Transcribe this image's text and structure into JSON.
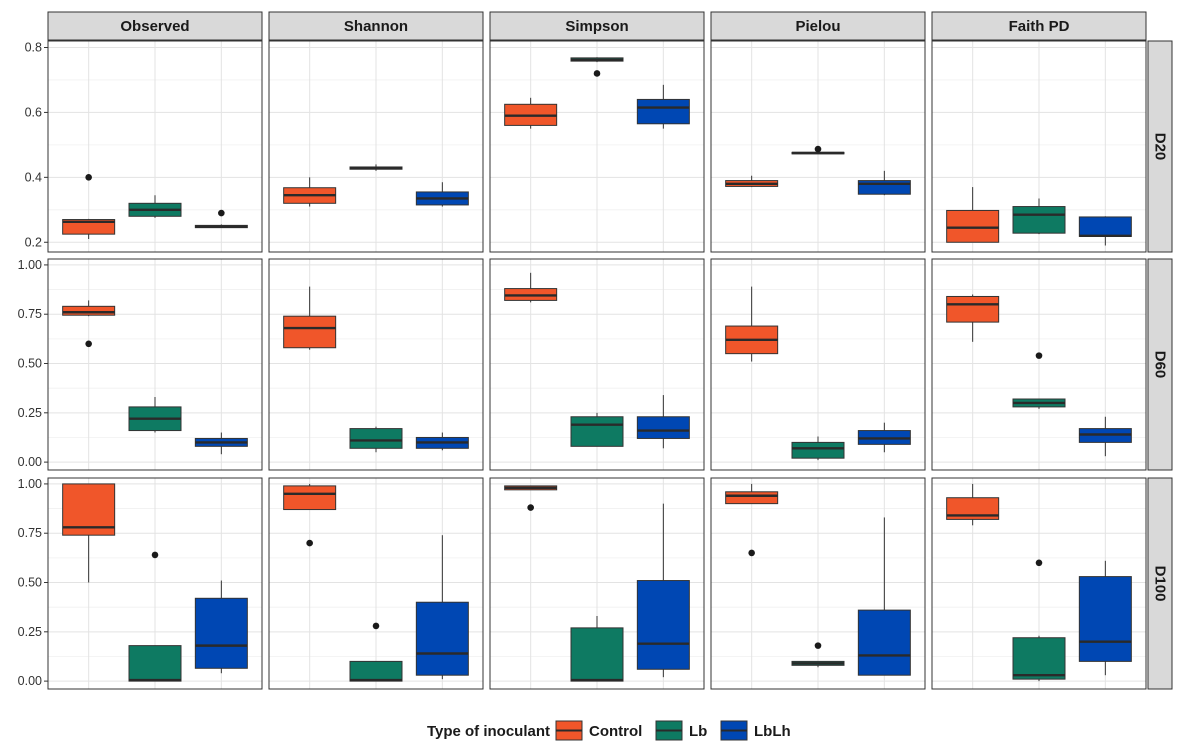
{
  "chart_data": {
    "type": "box",
    "legend": {
      "title": "Type of inoculant",
      "position": "bottom",
      "entries": [
        {
          "name": "Control",
          "color": "#f0562a"
        },
        {
          "name": "Lb",
          "color": "#0e7a62"
        },
        {
          "name": "LbLh",
          "color": "#0047b3"
        }
      ]
    },
    "columns": [
      "Observed",
      "Shannon",
      "Simpson",
      "Pielou",
      "Faith PD"
    ],
    "groups": [
      "Control",
      "Lb",
      "LbLh"
    ],
    "rows": [
      {
        "label": "D20",
        "ylim": [
          0.17,
          0.82
        ],
        "ticks": [
          0.2,
          0.4,
          0.6,
          0.8
        ],
        "tick_labels": [
          "0.2",
          "0.4",
          "0.6",
          "0.8"
        ],
        "panels": [
          {
            "column": "Observed",
            "boxes": [
              {
                "group": "Control",
                "min": 0.21,
                "q1": 0.225,
                "median": 0.263,
                "q3": 0.27,
                "max": 0.272,
                "outliers": [
                  0.4
                ]
              },
              {
                "group": "Lb",
                "min": 0.275,
                "q1": 0.28,
                "median": 0.3,
                "q3": 0.32,
                "max": 0.345,
                "outliers": []
              },
              {
                "group": "LbLh",
                "min": 0.245,
                "q1": 0.245,
                "median": 0.248,
                "q3": 0.252,
                "max": 0.255,
                "outliers": [
                  0.29
                ]
              }
            ]
          },
          {
            "column": "Shannon",
            "boxes": [
              {
                "group": "Control",
                "min": 0.31,
                "q1": 0.32,
                "median": 0.345,
                "q3": 0.368,
                "max": 0.4,
                "outliers": []
              },
              {
                "group": "Lb",
                "min": 0.42,
                "q1": 0.425,
                "median": 0.428,
                "q3": 0.432,
                "max": 0.44,
                "outliers": []
              },
              {
                "group": "LbLh",
                "min": 0.31,
                "q1": 0.315,
                "median": 0.335,
                "q3": 0.355,
                "max": 0.385,
                "outliers": []
              }
            ]
          },
          {
            "column": "Simpson",
            "boxes": [
              {
                "group": "Control",
                "min": 0.55,
                "q1": 0.56,
                "median": 0.59,
                "q3": 0.625,
                "max": 0.645,
                "outliers": []
              },
              {
                "group": "Lb",
                "min": 0.755,
                "q1": 0.758,
                "median": 0.762,
                "q3": 0.768,
                "max": 0.77,
                "outliers": [
                  0.72
                ]
              },
              {
                "group": "LbLh",
                "min": 0.55,
                "q1": 0.565,
                "median": 0.615,
                "q3": 0.64,
                "max": 0.685,
                "outliers": []
              }
            ]
          },
          {
            "column": "Pielou",
            "boxes": [
              {
                "group": "Control",
                "min": 0.37,
                "q1": 0.372,
                "median": 0.38,
                "q3": 0.39,
                "max": 0.405,
                "outliers": []
              },
              {
                "group": "Lb",
                "min": 0.472,
                "q1": 0.473,
                "median": 0.475,
                "q3": 0.477,
                "max": 0.478,
                "outliers": [
                  0.487
                ]
              },
              {
                "group": "LbLh",
                "min": 0.345,
                "q1": 0.348,
                "median": 0.38,
                "q3": 0.39,
                "max": 0.42,
                "outliers": []
              }
            ]
          },
          {
            "column": "Faith PD",
            "boxes": [
              {
                "group": "Control",
                "min": 0.2,
                "q1": 0.2,
                "median": 0.245,
                "q3": 0.298,
                "max": 0.37,
                "outliers": []
              },
              {
                "group": "Lb",
                "min": 0.225,
                "q1": 0.228,
                "median": 0.285,
                "q3": 0.31,
                "max": 0.335,
                "outliers": []
              },
              {
                "group": "LbLh",
                "min": 0.19,
                "q1": 0.218,
                "median": 0.22,
                "q3": 0.278,
                "max": 0.28,
                "outliers": []
              }
            ]
          }
        ]
      },
      {
        "label": "D60",
        "ylim": [
          -0.04,
          1.03
        ],
        "ticks": [
          0.0,
          0.25,
          0.5,
          0.75,
          1.0
        ],
        "tick_labels": [
          "0.00",
          "0.25",
          "0.50",
          "0.75",
          "1.00"
        ],
        "panels": [
          {
            "column": "Observed",
            "boxes": [
              {
                "group": "Control",
                "min": 0.74,
                "q1": 0.745,
                "median": 0.76,
                "q3": 0.79,
                "max": 0.82,
                "outliers": [
                  0.6
                ]
              },
              {
                "group": "Lb",
                "min": 0.15,
                "q1": 0.16,
                "median": 0.22,
                "q3": 0.28,
                "max": 0.33,
                "outliers": []
              },
              {
                "group": "LbLh",
                "min": 0.04,
                "q1": 0.08,
                "median": 0.1,
                "q3": 0.12,
                "max": 0.15,
                "outliers": []
              }
            ]
          },
          {
            "column": "Shannon",
            "boxes": [
              {
                "group": "Control",
                "min": 0.57,
                "q1": 0.58,
                "median": 0.68,
                "q3": 0.74,
                "max": 0.89,
                "outliers": []
              },
              {
                "group": "Lb",
                "min": 0.05,
                "q1": 0.07,
                "median": 0.11,
                "q3": 0.17,
                "max": 0.18,
                "outliers": []
              },
              {
                "group": "LbLh",
                "min": 0.06,
                "q1": 0.07,
                "median": 0.1,
                "q3": 0.125,
                "max": 0.15,
                "outliers": []
              }
            ]
          },
          {
            "column": "Simpson",
            "boxes": [
              {
                "group": "Control",
                "min": 0.81,
                "q1": 0.82,
                "median": 0.845,
                "q3": 0.88,
                "max": 0.96,
                "outliers": []
              },
              {
                "group": "Lb",
                "min": 0.08,
                "q1": 0.08,
                "median": 0.19,
                "q3": 0.23,
                "max": 0.25,
                "outliers": []
              },
              {
                "group": "LbLh",
                "min": 0.07,
                "q1": 0.12,
                "median": 0.16,
                "q3": 0.23,
                "max": 0.34,
                "outliers": []
              }
            ]
          },
          {
            "column": "Pielou",
            "boxes": [
              {
                "group": "Control",
                "min": 0.51,
                "q1": 0.55,
                "median": 0.62,
                "q3": 0.69,
                "max": 0.89,
                "outliers": []
              },
              {
                "group": "Lb",
                "min": 0.01,
                "q1": 0.02,
                "median": 0.07,
                "q3": 0.1,
                "max": 0.13,
                "outliers": []
              },
              {
                "group": "LbLh",
                "min": 0.05,
                "q1": 0.09,
                "median": 0.12,
                "q3": 0.16,
                "max": 0.2,
                "outliers": []
              }
            ]
          },
          {
            "column": "Faith PD",
            "boxes": [
              {
                "group": "Control",
                "min": 0.61,
                "q1": 0.71,
                "median": 0.8,
                "q3": 0.84,
                "max": 0.85,
                "outliers": []
              },
              {
                "group": "Lb",
                "min": 0.27,
                "q1": 0.28,
                "median": 0.3,
                "q3": 0.32,
                "max": 0.32,
                "outliers": [
                  0.54
                ]
              },
              {
                "group": "LbLh",
                "min": 0.03,
                "q1": 0.1,
                "median": 0.14,
                "q3": 0.17,
                "max": 0.23,
                "outliers": []
              }
            ]
          }
        ]
      },
      {
        "label": "D100",
        "ylim": [
          -0.04,
          1.03
        ],
        "ticks": [
          0.0,
          0.25,
          0.5,
          0.75,
          1.0
        ],
        "tick_labels": [
          "0.00",
          "0.25",
          "0.50",
          "0.75",
          "1.00"
        ],
        "panels": [
          {
            "column": "Observed",
            "boxes": [
              {
                "group": "Control",
                "min": 0.5,
                "q1": 0.74,
                "median": 0.78,
                "q3": 1.0,
                "max": 1.0,
                "outliers": []
              },
              {
                "group": "Lb",
                "min": 0.0,
                "q1": 0.0,
                "median": 0.005,
                "q3": 0.18,
                "max": 0.18,
                "outliers": [
                  0.64
                ]
              },
              {
                "group": "LbLh",
                "min": 0.04,
                "q1": 0.065,
                "median": 0.18,
                "q3": 0.42,
                "max": 0.51,
                "outliers": []
              }
            ]
          },
          {
            "column": "Shannon",
            "boxes": [
              {
                "group": "Control",
                "min": 0.87,
                "q1": 0.87,
                "median": 0.95,
                "q3": 0.99,
                "max": 1.0,
                "outliers": [
                  0.7
                ]
              },
              {
                "group": "Lb",
                "min": 0.0,
                "q1": 0.0,
                "median": 0.005,
                "q3": 0.1,
                "max": 0.1,
                "outliers": [
                  0.28
                ]
              },
              {
                "group": "LbLh",
                "min": 0.01,
                "q1": 0.03,
                "median": 0.14,
                "q3": 0.4,
                "max": 0.74,
                "outliers": []
              }
            ]
          },
          {
            "column": "Simpson",
            "boxes": [
              {
                "group": "Control",
                "min": 0.97,
                "q1": 0.97,
                "median": 0.98,
                "q3": 0.99,
                "max": 0.99,
                "outliers": [
                  0.88
                ]
              },
              {
                "group": "Lb",
                "min": 0.0,
                "q1": 0.0,
                "median": 0.005,
                "q3": 0.27,
                "max": 0.33,
                "outliers": []
              },
              {
                "group": "LbLh",
                "min": 0.02,
                "q1": 0.06,
                "median": 0.19,
                "q3": 0.51,
                "max": 0.9,
                "outliers": []
              }
            ]
          },
          {
            "column": "Pielou",
            "boxes": [
              {
                "group": "Control",
                "min": 0.9,
                "q1": 0.9,
                "median": 0.94,
                "q3": 0.96,
                "max": 1.0,
                "outliers": [
                  0.65
                ]
              },
              {
                "group": "Lb",
                "min": 0.07,
                "q1": 0.08,
                "median": 0.09,
                "q3": 0.1,
                "max": 0.1,
                "outliers": [
                  0.18
                ]
              },
              {
                "group": "LbLh",
                "min": 0.03,
                "q1": 0.03,
                "median": 0.13,
                "q3": 0.36,
                "max": 0.83,
                "outliers": []
              }
            ]
          },
          {
            "column": "Faith PD",
            "boxes": [
              {
                "group": "Control",
                "min": 0.79,
                "q1": 0.82,
                "median": 0.84,
                "q3": 0.93,
                "max": 1.0,
                "outliers": []
              },
              {
                "group": "Lb",
                "min": 0.0,
                "q1": 0.01,
                "median": 0.03,
                "q3": 0.22,
                "max": 0.23,
                "outliers": [
                  0.6
                ]
              },
              {
                "group": "LbLh",
                "min": 0.03,
                "q1": 0.1,
                "median": 0.2,
                "q3": 0.53,
                "max": 0.61,
                "outliers": []
              }
            ]
          }
        ]
      }
    ]
  }
}
